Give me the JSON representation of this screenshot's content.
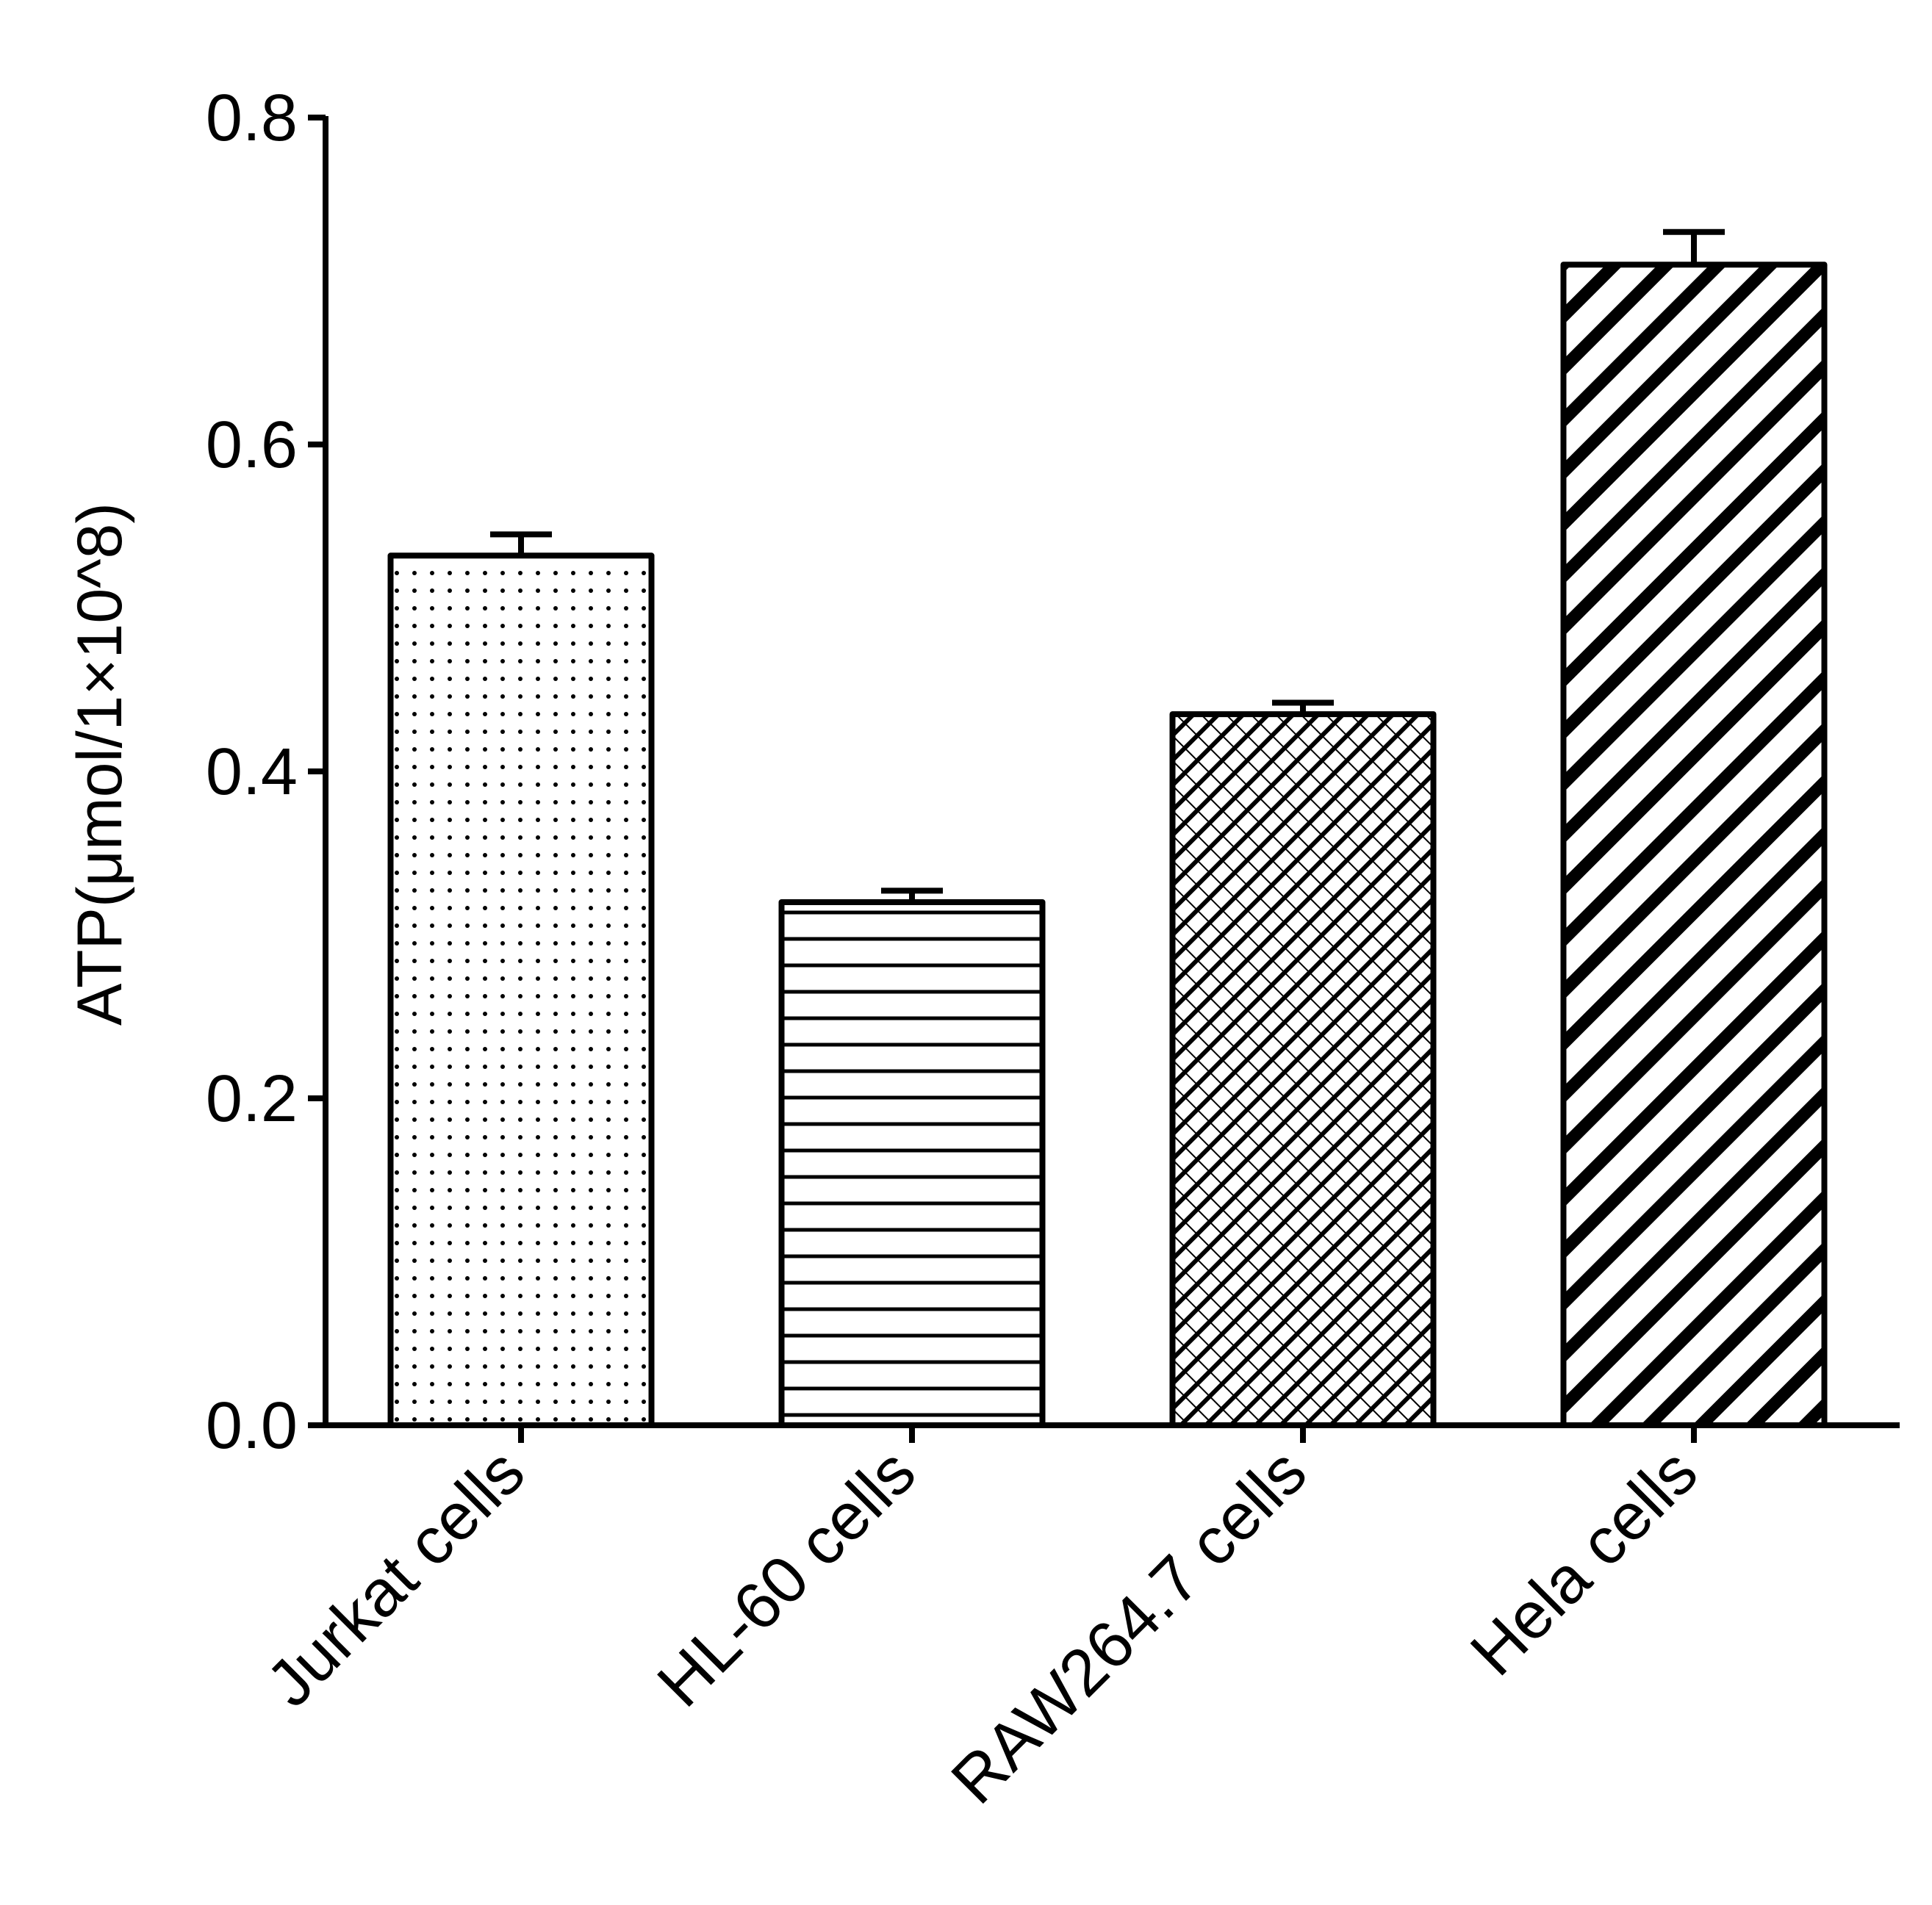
{
  "chart_data": {
    "type": "bar",
    "title": "",
    "xlabel": "",
    "ylabel": "ATP(μmol/1×10^8)",
    "categories": [
      "Jurkat cells",
      "HL-60 cells",
      "RAW264.7 cells",
      "Hela cells"
    ],
    "values": [
      0.532,
      0.32,
      0.435,
      0.71
    ],
    "errors": [
      0.013,
      0.007,
      0.007,
      0.02
    ],
    "ylim": [
      0.0,
      0.8
    ],
    "yticks": [
      "0.0",
      "0.2",
      "0.4",
      "0.6",
      "0.8"
    ],
    "patterns": [
      "dots",
      "horizontal-lines",
      "crosshatch",
      "diagonal-stripes"
    ],
    "grid": false,
    "legend": "none",
    "colors": {
      "stroke": "#000000",
      "fill": "#ffffff"
    }
  }
}
